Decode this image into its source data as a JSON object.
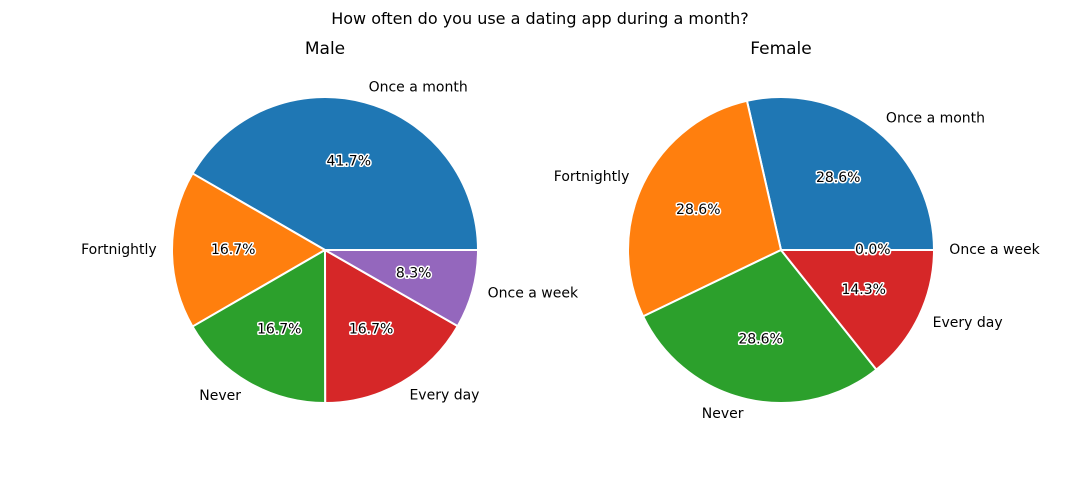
{
  "title": "How often do you use a dating app during a month?",
  "colors": {
    "Once a month": "#1f77b4",
    "Fortnightly": "#ff7f0e",
    "Never": "#2ca02c",
    "Every day": "#d62728",
    "Once a week": "#9467bd"
  },
  "chart_data": [
    {
      "type": "pie",
      "title": "Male",
      "slices": [
        {
          "label": "Once a month",
          "value": 41.7,
          "pct_label": "41.7%"
        },
        {
          "label": "Fortnightly",
          "value": 16.7,
          "pct_label": "16.7%"
        },
        {
          "label": "Never",
          "value": 16.7,
          "pct_label": "16.7%"
        },
        {
          "label": "Every day",
          "value": 16.7,
          "pct_label": "16.7%"
        },
        {
          "label": "Once a week",
          "value": 8.3,
          "pct_label": "8.3%"
        }
      ]
    },
    {
      "type": "pie",
      "title": "Female",
      "slices": [
        {
          "label": "Once a month",
          "value": 28.6,
          "pct_label": "28.6%"
        },
        {
          "label": "Fortnightly",
          "value": 28.6,
          "pct_label": "28.6%"
        },
        {
          "label": "Never",
          "value": 28.6,
          "pct_label": "28.6%"
        },
        {
          "label": "Every day",
          "value": 14.3,
          "pct_label": "14.3%"
        },
        {
          "label": "Once a week",
          "value": 0.0,
          "pct_label": "0.0%"
        }
      ]
    }
  ]
}
